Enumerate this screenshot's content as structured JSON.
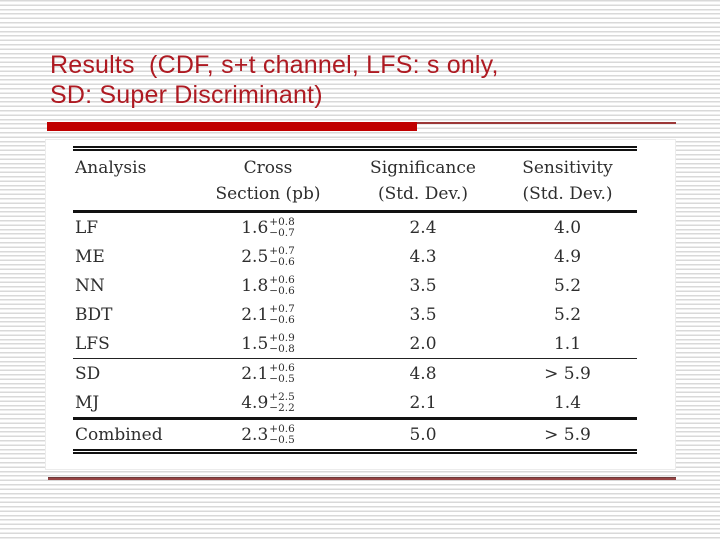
{
  "slide": {
    "title_line1": "Results  (CDF, s+t channel, LFS: s only,",
    "title_line2": "SD: Super Discriminant)"
  },
  "colors": {
    "title_red": "#ae1a22",
    "bar_red": "#c00000",
    "thin_line_red": "#9c3838",
    "stripe_gray": "#d9d9d9",
    "table_text": "#2e2e2e"
  },
  "table": {
    "headers": {
      "analysis": "Analysis",
      "cross_1": "Cross",
      "cross_2": "Section (pb)",
      "sig_1": "Significance",
      "sig_2": "(Std. Dev.)",
      "sen_1": "Sensitivity",
      "sen_2": "(Std. Dev.)"
    },
    "rows": [
      {
        "analysis": "LF",
        "xs": "1.6",
        "plus": "+0.8",
        "minus": "−0.7",
        "significance": "2.4",
        "sensitivity": "4.0"
      },
      {
        "analysis": "ME",
        "xs": "2.5",
        "plus": "+0.7",
        "minus": "−0.6",
        "significance": "4.3",
        "sensitivity": "4.9"
      },
      {
        "analysis": "NN",
        "xs": "1.8",
        "plus": "+0.6",
        "minus": "−0.6",
        "significance": "3.5",
        "sensitivity": "5.2"
      },
      {
        "analysis": "BDT",
        "xs": "2.1",
        "plus": "+0.7",
        "minus": "−0.6",
        "significance": "3.5",
        "sensitivity": "5.2"
      },
      {
        "analysis": "LFS",
        "xs": "1.5",
        "plus": "+0.9",
        "minus": "−0.8",
        "significance": "2.0",
        "sensitivity": "1.1"
      },
      {
        "analysis": "SD",
        "xs": "2.1",
        "plus": "+0.6",
        "minus": "−0.5",
        "significance": "4.8",
        "sensitivity": "> 5.9"
      },
      {
        "analysis": "MJ",
        "xs": "4.9",
        "plus": "+2.5",
        "minus": "−2.2",
        "significance": "2.1",
        "sensitivity": "1.4"
      },
      {
        "analysis": "Combined",
        "xs": "2.3",
        "plus": "+0.6",
        "minus": "−0.5",
        "significance": "5.0",
        "sensitivity": "> 5.9"
      }
    ]
  }
}
